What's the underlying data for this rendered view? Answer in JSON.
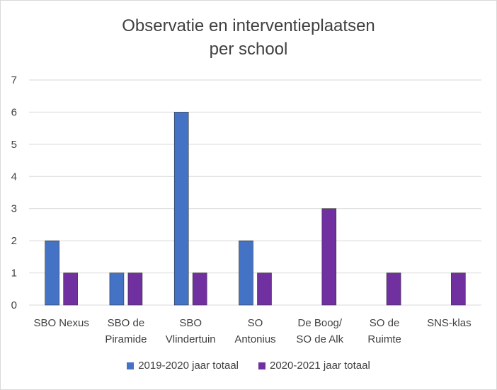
{
  "chart_data": {
    "type": "bar",
    "title_lines": [
      "Observatie en interventieplaatsen",
      "per school"
    ],
    "categories": [
      [
        "SBO Nexus"
      ],
      [
        "SBO de",
        "Piramide"
      ],
      [
        "SBO",
        "Vlindertuin"
      ],
      [
        "SO",
        "Antonius"
      ],
      [
        "De Boog/",
        "SO de Alk"
      ],
      [
        "SO de",
        "Ruimte"
      ],
      [
        "SNS-klas"
      ]
    ],
    "series": [
      {
        "name": "2019-2020 jaar totaal",
        "color": "#4472C4",
        "values": [
          2,
          1,
          6,
          2,
          null,
          null,
          null
        ]
      },
      {
        "name": "2020-2021 jaar totaal",
        "color": "#7030A0",
        "values": [
          1,
          1,
          1,
          1,
          3,
          1,
          1
        ]
      }
    ],
    "ylim": [
      0,
      7
    ],
    "yticks": [
      0,
      1,
      2,
      3,
      4,
      5,
      6,
      7
    ],
    "grid": true,
    "legend_position": "bottom"
  }
}
